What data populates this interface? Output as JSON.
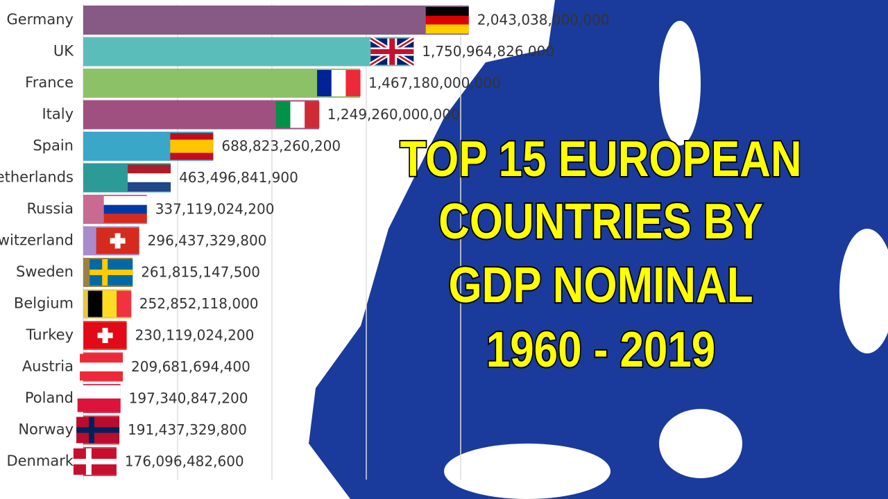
{
  "chart_data": {
    "type": "bar",
    "title": [
      "TOP 15 EUROPEAN",
      "COUNTRIES BY",
      "GDP NOMINAL",
      "1960 - 2019"
    ],
    "categories": [
      "Germany",
      "UK",
      "France",
      "Italy",
      "Spain",
      "Netherlands",
      "Russia",
      "Switzerland",
      "Sweden",
      "Belgium",
      "Turkey",
      "Austria",
      "Poland",
      "Norway",
      "Denmark"
    ],
    "values": [
      2043038000000,
      1750964826000,
      1467180000000,
      1249260000000,
      688823260200,
      463496841900,
      337119024200,
      296437329800,
      261815147500,
      252852118000,
      230119024200,
      209681694400,
      197340847200,
      191437329800,
      176096482600
    ],
    "value_labels": [
      "2,043,038,000,000",
      "1,750,964,826,000",
      "1,467,180,000,000",
      "1,249,260,000,000",
      "688,823,260,200",
      "463,496,841,900",
      "337,119,024,200",
      "296,437,329,800",
      "261,815,147,500",
      "252,852,118,000",
      "230,119,024,200",
      "209,681,694,400",
      "197,340,847,200",
      "191,437,329,800",
      "176,096,482,600"
    ],
    "colors": [
      "#875a86",
      "#5bbdb9",
      "#8cc167",
      "#a0507f",
      "#3aa7c9",
      "#2c9b98",
      "#c96a92",
      "#a98bcd",
      "#9b8042",
      "#e8c840",
      "#e85030",
      "#e04050",
      "#d04060",
      "#d84858",
      "#d84858"
    ],
    "xlim": [
      0,
      2500000000000
    ],
    "xticks": [
      500000000000,
      1000000000000,
      1500000000000,
      2000000000000
    ],
    "grid": true
  }
}
